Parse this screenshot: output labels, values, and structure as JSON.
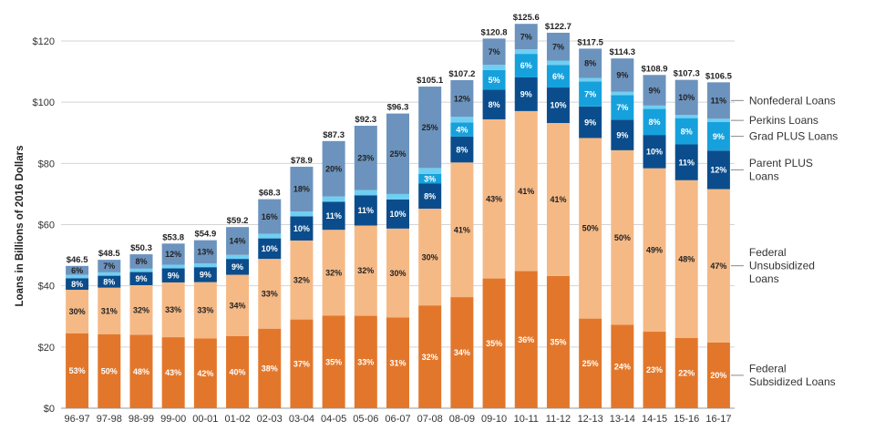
{
  "chart_data": {
    "type": "bar",
    "stacked": true,
    "title": "",
    "xlabel": "",
    "ylabel": "Loans in Billions of 2016 Dollars",
    "ylim": [
      0,
      125
    ],
    "yticks": [
      0,
      20,
      40,
      60,
      80,
      100,
      120
    ],
    "ytick_labels": [
      "$0",
      "$20",
      "$40",
      "$60",
      "$80",
      "$100",
      "$120"
    ],
    "grid": true,
    "legend_placement": "right",
    "categories": [
      "96-97",
      "97-98",
      "98-99",
      "99-00",
      "00-01",
      "01-02",
      "02-03",
      "03-04",
      "04-05",
      "05-06",
      "06-07",
      "07-08",
      "08-09",
      "09-10",
      "10-11",
      "11-12",
      "12-13",
      "13-14",
      "14-15",
      "15-16",
      "16-17"
    ],
    "totals": [
      46.5,
      48.5,
      50.3,
      53.8,
      54.9,
      59.2,
      68.3,
      78.9,
      87.3,
      92.3,
      96.3,
      105.1,
      107.2,
      120.8,
      125.6,
      122.7,
      117.5,
      114.3,
      108.9,
      107.3,
      106.5
    ],
    "total_labels": [
      "$46.5",
      "$48.5",
      "$50.3",
      "$53.8",
      "$54.9",
      "$59.2",
      "$68.3",
      "$78.9",
      "$87.3",
      "$92.3",
      "$96.3",
      "$105.1",
      "$107.2",
      "$120.8",
      "$125.6",
      "$122.7",
      "$117.5",
      "$114.3",
      "$108.9",
      "$107.3",
      "$106.5"
    ],
    "series": [
      {
        "name": "Federal Subsidized Loans",
        "color": "#e2772b",
        "text_color": "#ffffff",
        "values": [
          24.5,
          24.2,
          24.0,
          23.2,
          22.8,
          23.6,
          26.0,
          29.0,
          30.3,
          30.2,
          29.7,
          33.6,
          36.3,
          42.4,
          44.8,
          43.2,
          29.3,
          27.3,
          25.0,
          23.0,
          21.5
        ],
        "labels": [
          "53%",
          "50%",
          "48%",
          "43%",
          "42%",
          "40%",
          "38%",
          "37%",
          "35%",
          "33%",
          "31%",
          "32%",
          "34%",
          "35%",
          "36%",
          "35%",
          "25%",
          "24%",
          "23%",
          "22%",
          "20%"
        ]
      },
      {
        "name": "Federal Unsubsidized Loans",
        "color": "#f5b986",
        "text_color": "#222222",
        "values": [
          14.2,
          15.2,
          16.2,
          17.9,
          18.4,
          20.0,
          22.8,
          25.8,
          28.0,
          29.5,
          29.0,
          31.6,
          44.0,
          52.0,
          52.3,
          50.0,
          59.0,
          57.0,
          53.4,
          51.5,
          50.1
        ],
        "labels": [
          "30%",
          "31%",
          "32%",
          "33%",
          "33%",
          "34%",
          "33%",
          "32%",
          "32%",
          "32%",
          "30%",
          "30%",
          "41%",
          "43%",
          "41%",
          "41%",
          "50%",
          "50%",
          "49%",
          "48%",
          "47%"
        ]
      },
      {
        "name": "Parent PLUS Loans",
        "color": "#0b4d8c",
        "text_color": "#ffffff",
        "values": [
          3.8,
          3.9,
          4.3,
          4.6,
          4.9,
          5.2,
          6.7,
          7.9,
          9.2,
          9.9,
          9.5,
          8.2,
          8.5,
          9.7,
          11.0,
          11.6,
          10.3,
          10.0,
          10.9,
          11.7,
          12.6
        ],
        "labels": [
          "8%",
          "8%",
          "9%",
          "9%",
          "9%",
          "9%",
          "10%",
          "10%",
          "11%",
          "11%",
          "10%",
          "8%",
          "8%",
          "8%",
          "9%",
          "10%",
          "9%",
          "9%",
          "10%",
          "11%",
          "12%"
        ]
      },
      {
        "name": "Grad PLUS Loans",
        "color": "#16a1dc",
        "text_color": "#ffffff",
        "values": [
          0,
          0,
          0,
          0,
          0,
          0,
          0,
          0,
          0,
          0,
          0,
          3.2,
          4.6,
          6.4,
          7.7,
          7.4,
          8.2,
          8.0,
          8.5,
          8.6,
          9.3
        ],
        "labels": [
          "",
          "",
          "",
          "",
          "",
          "",
          "",
          "",
          "",
          "",
          "",
          "3%",
          "4%",
          "5%",
          "6%",
          "6%",
          "7%",
          "7%",
          "8%",
          "8%",
          "9%"
        ]
      },
      {
        "name": "Perkins Loans",
        "color": "#6fcff2",
        "text_color": "#222222",
        "values": [
          1.1,
          1.1,
          1.1,
          1.2,
          1.2,
          1.3,
          1.5,
          1.6,
          1.7,
          1.7,
          1.8,
          1.9,
          1.8,
          1.7,
          1.5,
          1.4,
          1.1,
          1.1,
          1.1,
          1.0,
          1.1
        ],
        "labels": [
          "",
          "",
          "",
          "",
          "",
          "",
          "",
          "",
          "",
          "",
          "",
          "",
          "",
          "",
          "",
          "",
          "",
          "",
          "",
          "",
          ""
        ]
      },
      {
        "name": "Nonfederal Loans",
        "color": "#6c93bd",
        "text_color": "#222222",
        "values": [
          2.9,
          4.1,
          4.7,
          6.9,
          7.6,
          9.1,
          11.3,
          14.6,
          18.1,
          21.0,
          26.3,
          26.6,
          12.0,
          8.6,
          8.3,
          9.1,
          9.6,
          10.9,
          10.0,
          11.5,
          11.9
        ],
        "labels": [
          "6%",
          "7%",
          "8%",
          "12%",
          "13%",
          "14%",
          "16%",
          "18%",
          "20%",
          "23%",
          "25%",
          "25%",
          "12%",
          "7%",
          "7%",
          "7%",
          "8%",
          "9%",
          "9%",
          "10%",
          "11%"
        ]
      }
    ],
    "legend": [
      {
        "text": "Nonfederal Loans"
      },
      {
        "text": "Perkins Loans"
      },
      {
        "text": "Grad PLUS Loans"
      },
      {
        "text": "Parent PLUS\nLoans"
      },
      {
        "text": "Federal\nUnsubsidized\nLoans"
      },
      {
        "text": "Federal\nSubsidized Loans"
      }
    ]
  }
}
